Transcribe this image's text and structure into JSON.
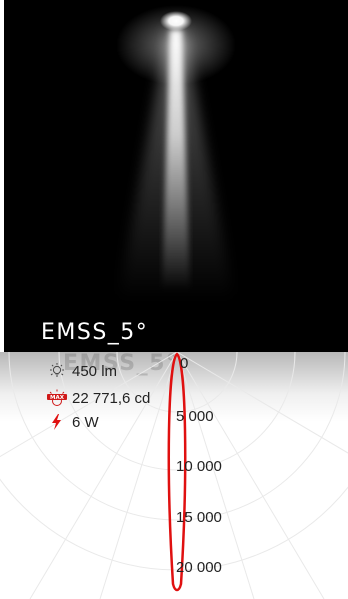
{
  "product": {
    "title": "EMSS_5°"
  },
  "stats": [
    {
      "icon": "bulb-lumen-icon",
      "value": "450 lm"
    },
    {
      "icon": "max-intensity-icon",
      "value": "22 771,6 cd"
    },
    {
      "icon": "power-bolt-icon",
      "value": "6 W"
    }
  ],
  "chart_data": {
    "type": "polar-intensity",
    "tick_labels": [
      "0",
      "5 000",
      "10 000",
      "15 000",
      "20 000"
    ],
    "max_intensity_cd": 22771.6,
    "beam_angle_deg": 5,
    "curve_color": "#e01010"
  },
  "colors": {
    "accent": "#e01010",
    "beam_bg": "#000000"
  }
}
